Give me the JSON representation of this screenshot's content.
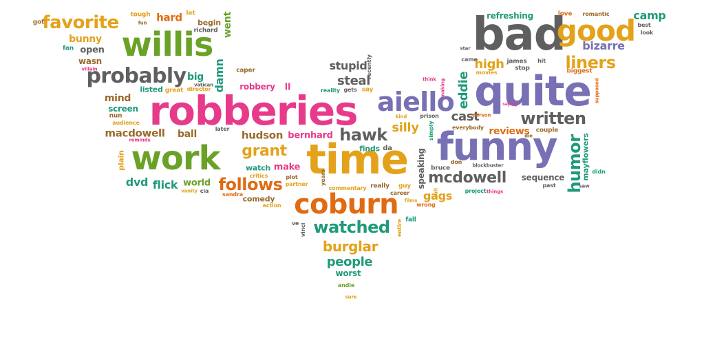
{
  "colors": {
    "gray": "#5f5f5f",
    "green": "#6aa127",
    "pink": "#e73a8a",
    "purple": "#7770b4",
    "gold": "#e3a21a",
    "orange": "#e06b12",
    "teal": "#1f9a7a",
    "brown": "#9a6a2b"
  },
  "words": [
    {
      "t": "bad",
      "c": "gray"
    },
    {
      "t": "good",
      "c": "gold"
    },
    {
      "t": "quite",
      "c": "purple"
    },
    {
      "t": "funny",
      "c": "purple"
    },
    {
      "t": "robberies",
      "c": "pink"
    },
    {
      "t": "time",
      "c": "gold"
    },
    {
      "t": "willis",
      "c": "green"
    },
    {
      "t": "work",
      "c": "green"
    },
    {
      "t": "coburn",
      "c": "orange"
    },
    {
      "t": "aiello",
      "c": "purple"
    },
    {
      "t": "probably",
      "c": "gray"
    },
    {
      "t": "favorite",
      "c": "gold"
    },
    {
      "t": "humor",
      "c": "teal"
    },
    {
      "t": "written",
      "c": "gray"
    },
    {
      "t": "liners",
      "c": "gold"
    },
    {
      "t": "watched",
      "c": "teal"
    },
    {
      "t": "follows",
      "c": "orange"
    },
    {
      "t": "hawk",
      "c": "gray"
    },
    {
      "t": "mcdowell",
      "c": "gray"
    },
    {
      "t": "grant",
      "c": "gold"
    },
    {
      "t": "burglar",
      "c": "gold"
    },
    {
      "t": "bizarre",
      "c": "purple"
    },
    {
      "t": "steal",
      "c": "gray"
    },
    {
      "t": "high",
      "c": "gold"
    },
    {
      "t": "eddie",
      "c": "teal"
    },
    {
      "t": "camp",
      "c": "teal"
    },
    {
      "t": "people",
      "c": "teal"
    },
    {
      "t": "stupid",
      "c": "gray"
    },
    {
      "t": "cast",
      "c": "gray"
    },
    {
      "t": "silly",
      "c": "gold"
    },
    {
      "t": "gags",
      "c": "gold"
    },
    {
      "t": "dvd",
      "c": "teal"
    },
    {
      "t": "flick",
      "c": "teal"
    },
    {
      "t": "hudson",
      "c": "brown"
    },
    {
      "t": "macdowell",
      "c": "brown"
    },
    {
      "t": "bernhard",
      "c": "pink"
    },
    {
      "t": "hard",
      "c": "orange"
    },
    {
      "t": "refreshing",
      "c": "teal"
    },
    {
      "t": "bunny",
      "c": "gold"
    },
    {
      "t": "open",
      "c": "gray"
    },
    {
      "t": "mind",
      "c": "brown"
    },
    {
      "t": "ball",
      "c": "brown"
    },
    {
      "t": "world",
      "c": "green"
    },
    {
      "t": "make",
      "c": "pink"
    },
    {
      "t": "reviews",
      "c": "orange"
    },
    {
      "t": "sequence",
      "c": "gray"
    },
    {
      "t": "speaking",
      "c": "gray"
    },
    {
      "t": "mayflowers",
      "c": "teal"
    },
    {
      "t": "worst",
      "c": "teal"
    },
    {
      "t": "comedy",
      "c": "brown"
    },
    {
      "t": "robbery",
      "c": "pink"
    },
    {
      "t": "damn",
      "c": "teal"
    },
    {
      "t": "went",
      "c": "green"
    },
    {
      "t": "begin",
      "c": "brown"
    },
    {
      "t": "tough",
      "c": "gold"
    },
    {
      "t": "got",
      "c": "brown"
    },
    {
      "t": "fun",
      "c": "brown"
    },
    {
      "t": "fan",
      "c": "teal"
    },
    {
      "t": "wasn",
      "c": "brown"
    },
    {
      "t": "villain",
      "c": "pink"
    },
    {
      "t": "richard",
      "c": "gray"
    },
    {
      "t": "let",
      "c": "gold"
    },
    {
      "t": "big",
      "c": "teal"
    },
    {
      "t": "vatican",
      "c": "gray"
    },
    {
      "t": "director",
      "c": "gold"
    },
    {
      "t": "caper",
      "c": "brown"
    },
    {
      "t": "ll",
      "c": "pink"
    },
    {
      "t": "listed",
      "c": "teal"
    },
    {
      "t": "great",
      "c": "gold"
    },
    {
      "t": "screen",
      "c": "teal"
    },
    {
      "t": "nun",
      "c": "brown"
    },
    {
      "t": "audience",
      "c": "gold"
    },
    {
      "t": "reminds",
      "c": "pink"
    },
    {
      "t": "plain",
      "c": "gold"
    },
    {
      "t": "vanity",
      "c": "gold"
    },
    {
      "t": "cia",
      "c": "gray"
    },
    {
      "t": "later",
      "c": "gray"
    },
    {
      "t": "watch",
      "c": "teal"
    },
    {
      "t": "critics",
      "c": "gold"
    },
    {
      "t": "sandra",
      "c": "orange"
    },
    {
      "t": "action",
      "c": "gold"
    },
    {
      "t": "plot",
      "c": "brown"
    },
    {
      "t": "partner",
      "c": "gold"
    },
    {
      "t": "years",
      "c": "brown"
    },
    {
      "t": "finds",
      "c": "teal"
    },
    {
      "t": "da",
      "c": "gray"
    },
    {
      "t": "commentary",
      "c": "gold"
    },
    {
      "t": "really",
      "c": "brown"
    },
    {
      "t": "guy",
      "c": "gold"
    },
    {
      "t": "vinci",
      "c": "gray"
    },
    {
      "t": "ve",
      "c": "gray"
    },
    {
      "t": "entire",
      "c": "gold"
    },
    {
      "t": "andie",
      "c": "green"
    },
    {
      "t": "sure",
      "c": "gold"
    },
    {
      "t": "reality",
      "c": "teal"
    },
    {
      "t": "gets",
      "c": "gray"
    },
    {
      "t": "say",
      "c": "gold"
    },
    {
      "t": "recently",
      "c": "gray"
    },
    {
      "t": "kind",
      "c": "gold"
    },
    {
      "t": "prison",
      "c": "gray"
    },
    {
      "t": "career",
      "c": "brown"
    },
    {
      "t": "simply",
      "c": "teal"
    },
    {
      "t": "films",
      "c": "gold"
    },
    {
      "t": "wrong",
      "c": "orange"
    },
    {
      "t": "fall",
      "c": "teal"
    },
    {
      "t": "cult",
      "c": "gold"
    },
    {
      "t": "bruce",
      "c": "gray"
    },
    {
      "t": "don",
      "c": "brown"
    },
    {
      "t": "project",
      "c": "teal"
    },
    {
      "t": "blockbuster",
      "c": "gray"
    },
    {
      "t": "things",
      "c": "pink"
    },
    {
      "t": "everybody",
      "c": "brown"
    },
    {
      "t": "person",
      "c": "orange"
    },
    {
      "t": "think",
      "c": "pink"
    },
    {
      "t": "making",
      "c": "pink"
    },
    {
      "t": "came",
      "c": "gray"
    },
    {
      "t": "movies",
      "c": "gold"
    },
    {
      "t": "james",
      "c": "gray"
    },
    {
      "t": "stop",
      "c": "gray"
    },
    {
      "t": "hit",
      "c": "gray"
    },
    {
      "t": "biggest",
      "c": "orange"
    },
    {
      "t": "saying",
      "c": "pink"
    },
    {
      "t": "love",
      "c": "orange"
    },
    {
      "t": "romantic",
      "c": "brown"
    },
    {
      "t": "best",
      "c": "gray"
    },
    {
      "t": "look",
      "c": "gray"
    },
    {
      "t": "star",
      "c": "gray"
    },
    {
      "t": "supposed",
      "c": "orange"
    },
    {
      "t": "couple",
      "c": "brown"
    },
    {
      "t": "die",
      "c": "brown"
    },
    {
      "t": "past",
      "c": "gray"
    },
    {
      "t": "didn",
      "c": "teal"
    },
    {
      "t": "saw",
      "c": "gray"
    }
  ]
}
